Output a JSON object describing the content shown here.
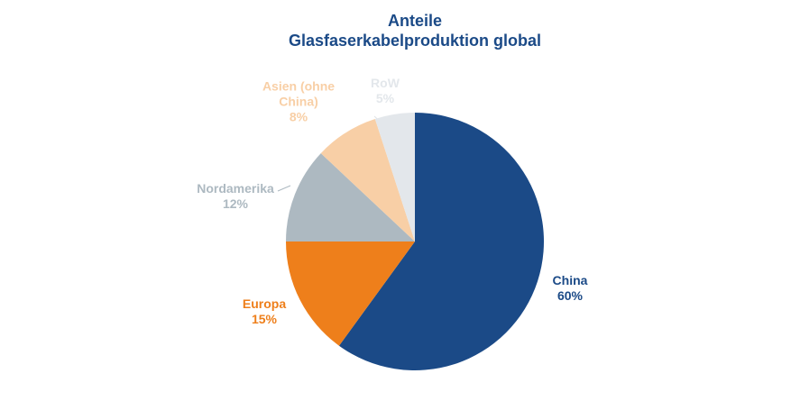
{
  "chart_data": {
    "type": "pie",
    "title": [
      "Anteile",
      "Glasfaserkabelproduktion global"
    ],
    "categories": [
      "China",
      "Europa",
      "Nordamerika",
      "Asien (ohne China)",
      "RoW"
    ],
    "values": [
      60,
      15,
      12,
      8,
      5
    ],
    "value_labels": [
      "60%",
      "15%",
      "12%",
      "8%",
      "5%"
    ],
    "colors": [
      "#1b4a87",
      "#ee7f1b",
      "#adb9c1",
      "#f8cfa6",
      "#e3e7eb"
    ]
  }
}
